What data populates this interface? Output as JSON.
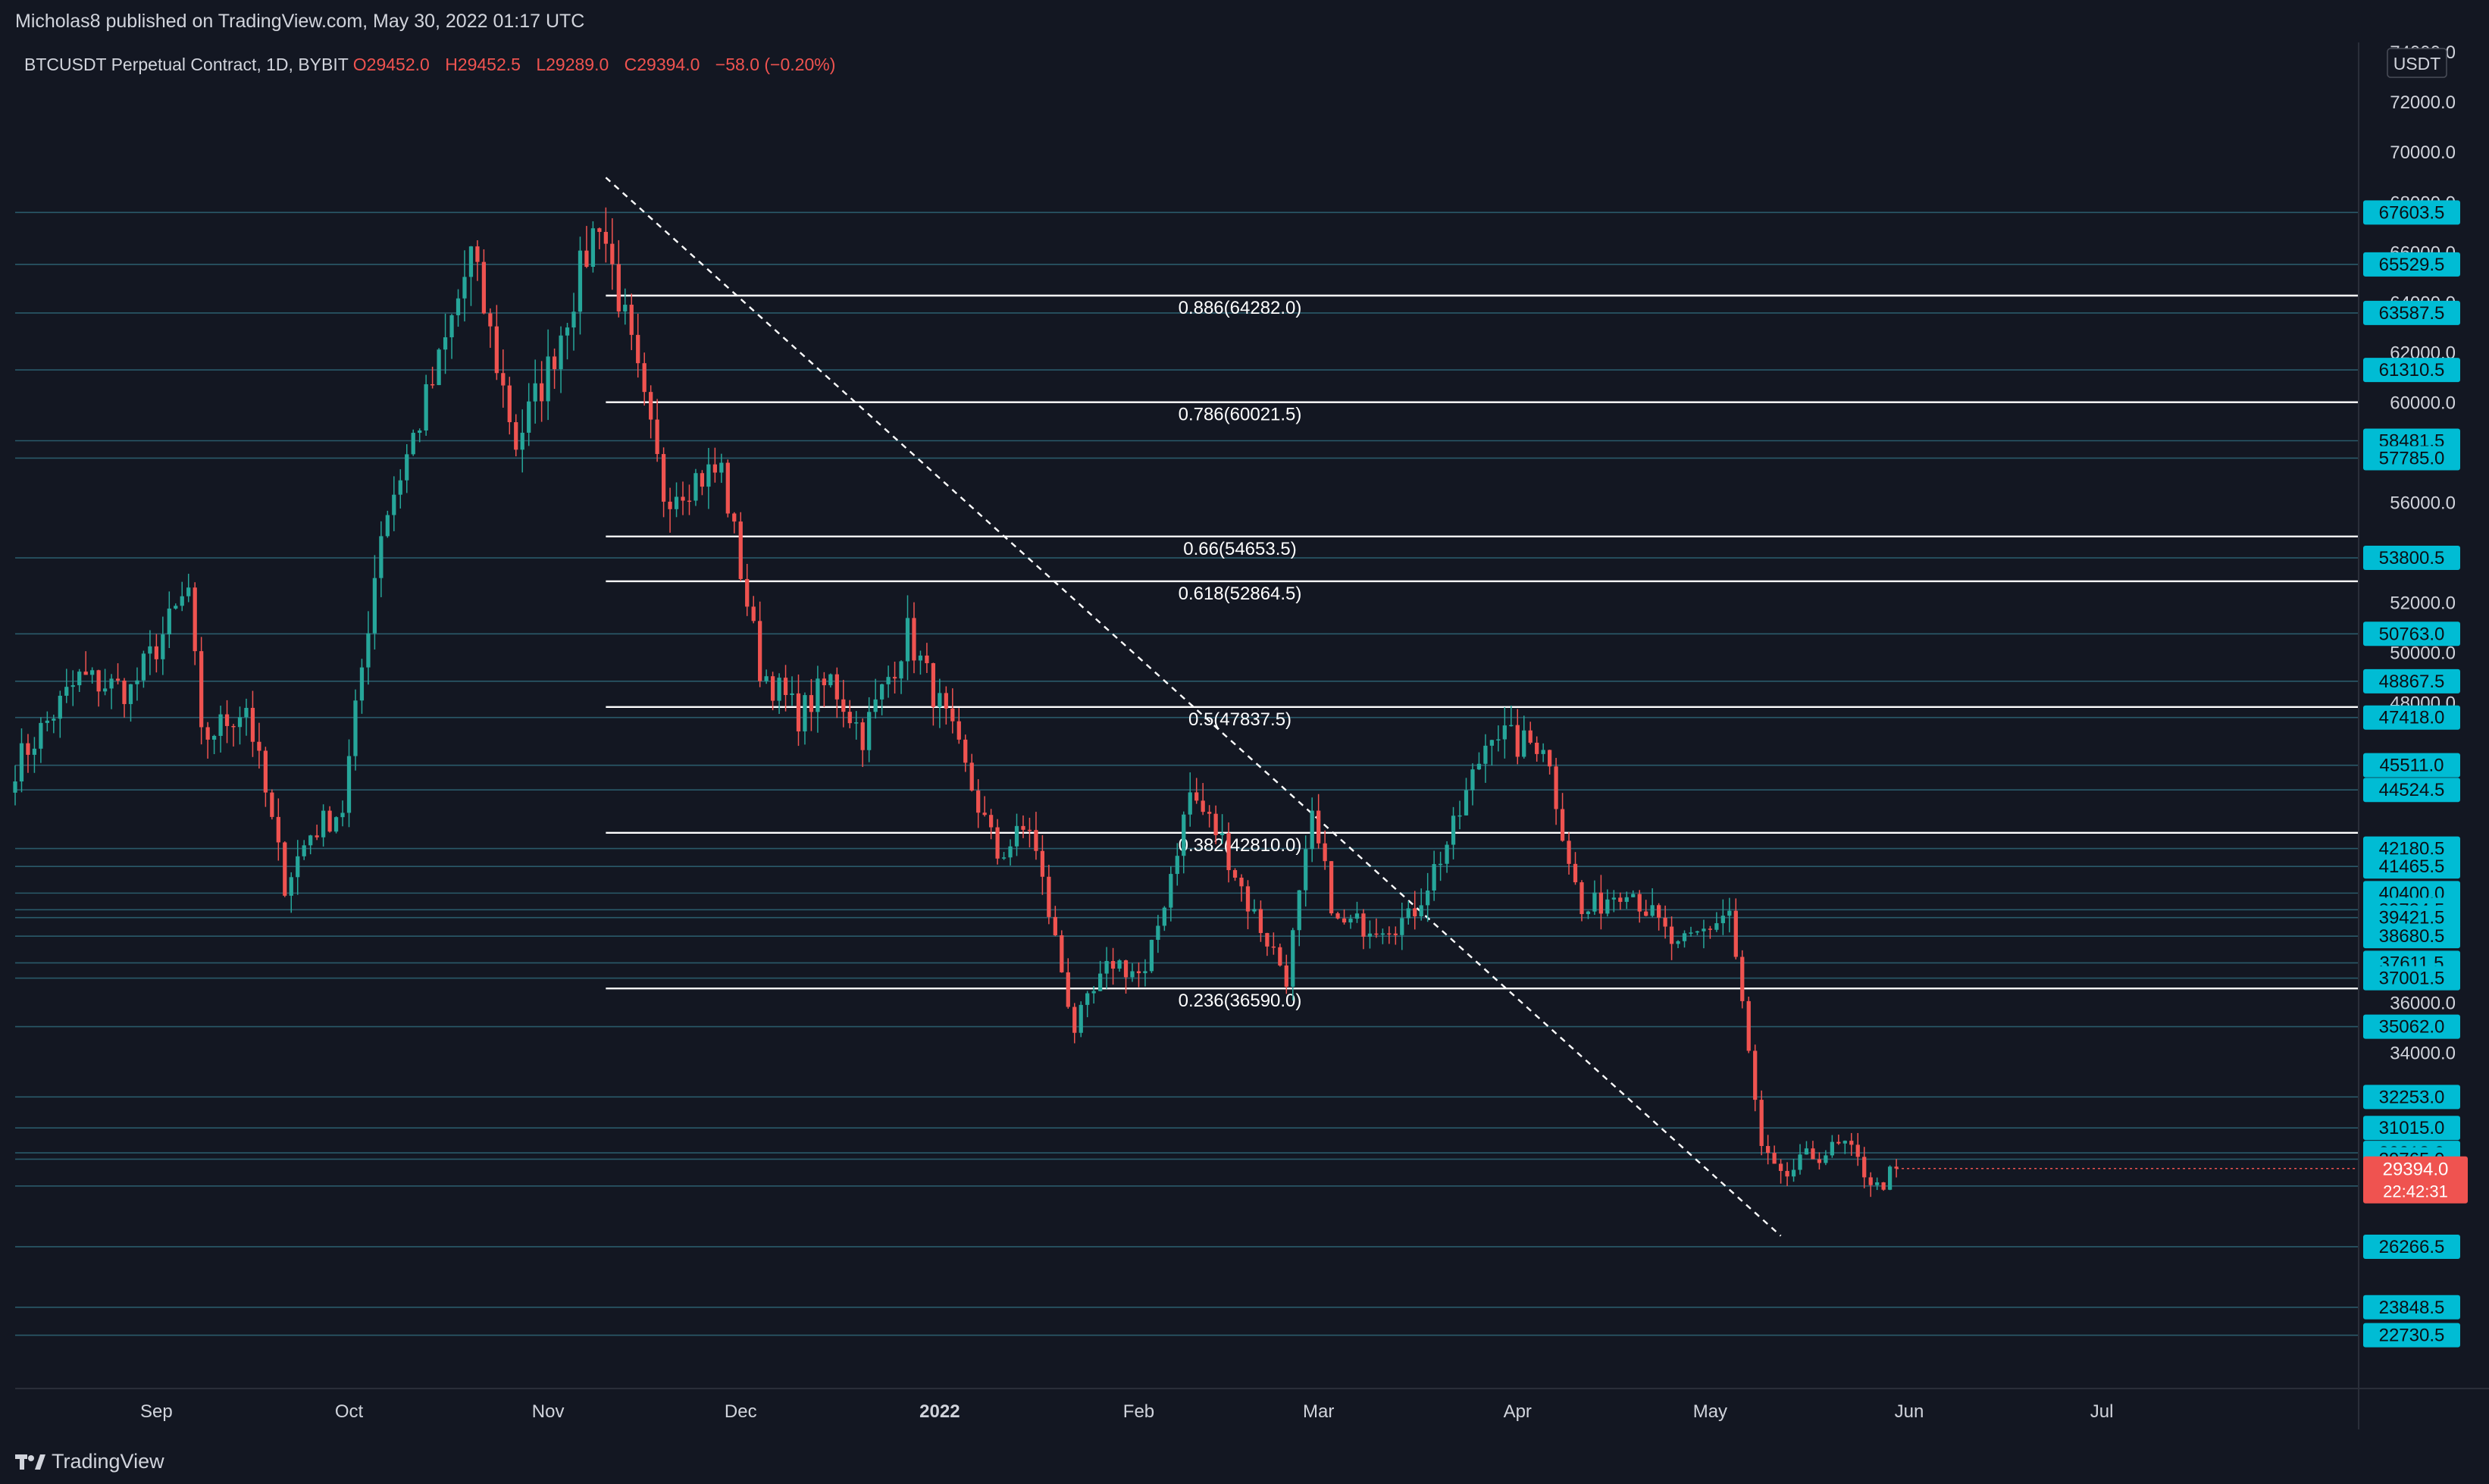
{
  "published": "Micholas8 published on TradingView.com, May 30, 2022 01:17 UTC",
  "brand": "TradingView",
  "colors": {
    "background": "#131722",
    "up": "#26a69a",
    "down": "#ef5350",
    "badge": "#00bcd4",
    "text": "#d1d4dc",
    "level_line": "#2a5a6a",
    "fib_line": "#ffffff"
  },
  "chart_data": {
    "type": "candlestick",
    "symbol": "BTCUSDT Perpetual Contract, 1D, BYBIT",
    "ohlc_label": {
      "o": "O29452.0",
      "h": "H29452.5",
      "l": "L29289.0",
      "c": "C29394.0",
      "change": "−58.0 (−0.20%)"
    },
    "currency": "USDT",
    "ylim": [
      20600,
      74400
    ],
    "xlim": [
      "2021-08-10",
      "2022-08-10"
    ],
    "y_ticks": [
      "74000.0",
      "72000.0",
      "70000.0",
      "68000.0",
      "66000.0",
      "64000.0",
      "62000.0",
      "60000.0",
      "56000.0",
      "52000.0",
      "50000.0",
      "48000.0",
      "36000.0",
      "34000.0"
    ],
    "x_ticks": [
      {
        "date": "2021-09-01",
        "label": "Sep"
      },
      {
        "date": "2021-10-01",
        "label": "Oct"
      },
      {
        "date": "2021-11-01",
        "label": "Nov"
      },
      {
        "date": "2021-12-01",
        "label": "Dec"
      },
      {
        "date": "2022-01-01",
        "label": "2022"
      },
      {
        "date": "2022-02-01",
        "label": "Feb"
      },
      {
        "date": "2022-03-01",
        "label": "Mar"
      },
      {
        "date": "2022-04-01",
        "label": "Apr"
      },
      {
        "date": "2022-05-01",
        "label": "May"
      },
      {
        "date": "2022-06-01",
        "label": "Jun"
      },
      {
        "date": "2022-07-01",
        "label": "Jul"
      }
    ],
    "horizontal_levels": [
      "67603.5",
      "65529.5",
      "63587.5",
      "61310.5",
      "58481.5",
      "57785.0",
      "53800.5",
      "50763.0",
      "48867.5",
      "47418.0",
      "45511.0",
      "44524.5",
      "42180.5",
      "41465.5",
      "40400.0",
      "39734.5",
      "39421.5",
      "38680.5",
      "37611.5",
      "37001.5",
      "35062.0",
      "32253.0",
      "31015.0",
      "30018.0",
      "29765.0",
      "28694.0",
      "26266.5",
      "23848.5",
      "22730.5"
    ],
    "last_price": {
      "value": "29394.0",
      "countdown": "22:42:31"
    },
    "fib_levels": [
      {
        "label": "0.886(64282.0)",
        "value": 64282.0
      },
      {
        "label": "0.786(60021.5)",
        "value": 60021.5
      },
      {
        "label": "0.66(54653.5)",
        "value": 54653.5
      },
      {
        "label": "0.618(52864.5)",
        "value": 52864.5
      },
      {
        "label": "0.5(47837.5)",
        "value": 47837.5
      },
      {
        "label": "0.382(42810.0)",
        "value": 42810.0
      },
      {
        "label": "0.236(36590.0)",
        "value": 36590.0
      }
    ],
    "fib_start": "2021-11-10",
    "trendline": {
      "start": [
        "2021-11-10",
        69000
      ],
      "end": [
        "2022-05-12",
        26700
      ]
    },
    "price_path": [
      [
        "2021-08-10",
        45500
      ],
      [
        "2021-08-20",
        49000
      ],
      [
        "2021-08-28",
        48500
      ],
      [
        "2021-09-06",
        52500
      ],
      [
        "2021-09-08",
        46500
      ],
      [
        "2021-09-15",
        47900
      ],
      [
        "2021-09-21",
        40800
      ],
      [
        "2021-09-25",
        42800
      ],
      [
        "2021-09-30",
        43800
      ],
      [
        "2021-10-06",
        55000
      ],
      [
        "2021-10-15",
        61500
      ],
      [
        "2021-10-20",
        65900
      ],
      [
        "2021-10-27",
        58400
      ],
      [
        "2021-11-01",
        61300
      ],
      [
        "2021-11-09",
        67500
      ],
      [
        "2021-11-12",
        64300
      ],
      [
        "2021-11-19",
        56400
      ],
      [
        "2021-11-24",
        57000
      ],
      [
        "2021-11-28",
        57300
      ],
      [
        "2021-12-04",
        49400
      ],
      [
        "2021-12-10",
        47500
      ],
      [
        "2021-12-15",
        48900
      ],
      [
        "2021-12-20",
        46700
      ],
      [
        "2021-12-27",
        50800
      ],
      [
        "2022-01-02",
        47300
      ],
      [
        "2022-01-10",
        41900
      ],
      [
        "2022-01-15",
        43100
      ],
      [
        "2022-01-22",
        35000
      ],
      [
        "2022-01-28",
        37700
      ],
      [
        "2022-02-02",
        37000
      ],
      [
        "2022-02-09",
        44400
      ],
      [
        "2022-02-14",
        42500
      ],
      [
        "2022-02-18",
        40000
      ],
      [
        "2022-02-24",
        37100
      ],
      [
        "2022-02-28",
        43200
      ],
      [
        "2022-03-04",
        39100
      ],
      [
        "2022-03-10",
        39200
      ],
      [
        "2022-03-15",
        39300
      ],
      [
        "2022-03-22",
        42900
      ],
      [
        "2022-03-28",
        47100
      ],
      [
        "2022-04-01",
        46300
      ],
      [
        "2022-04-05",
        46500
      ],
      [
        "2022-04-11",
        39500
      ],
      [
        "2022-04-18",
        40800
      ],
      [
        "2022-04-26",
        38100
      ],
      [
        "2022-05-04",
        39700
      ],
      [
        "2022-05-09",
        30100
      ],
      [
        "2022-05-12",
        28900
      ],
      [
        "2022-05-16",
        29800
      ],
      [
        "2022-05-22",
        30300
      ],
      [
        "2022-05-27",
        28600
      ],
      [
        "2022-05-30",
        29394
      ]
    ]
  }
}
